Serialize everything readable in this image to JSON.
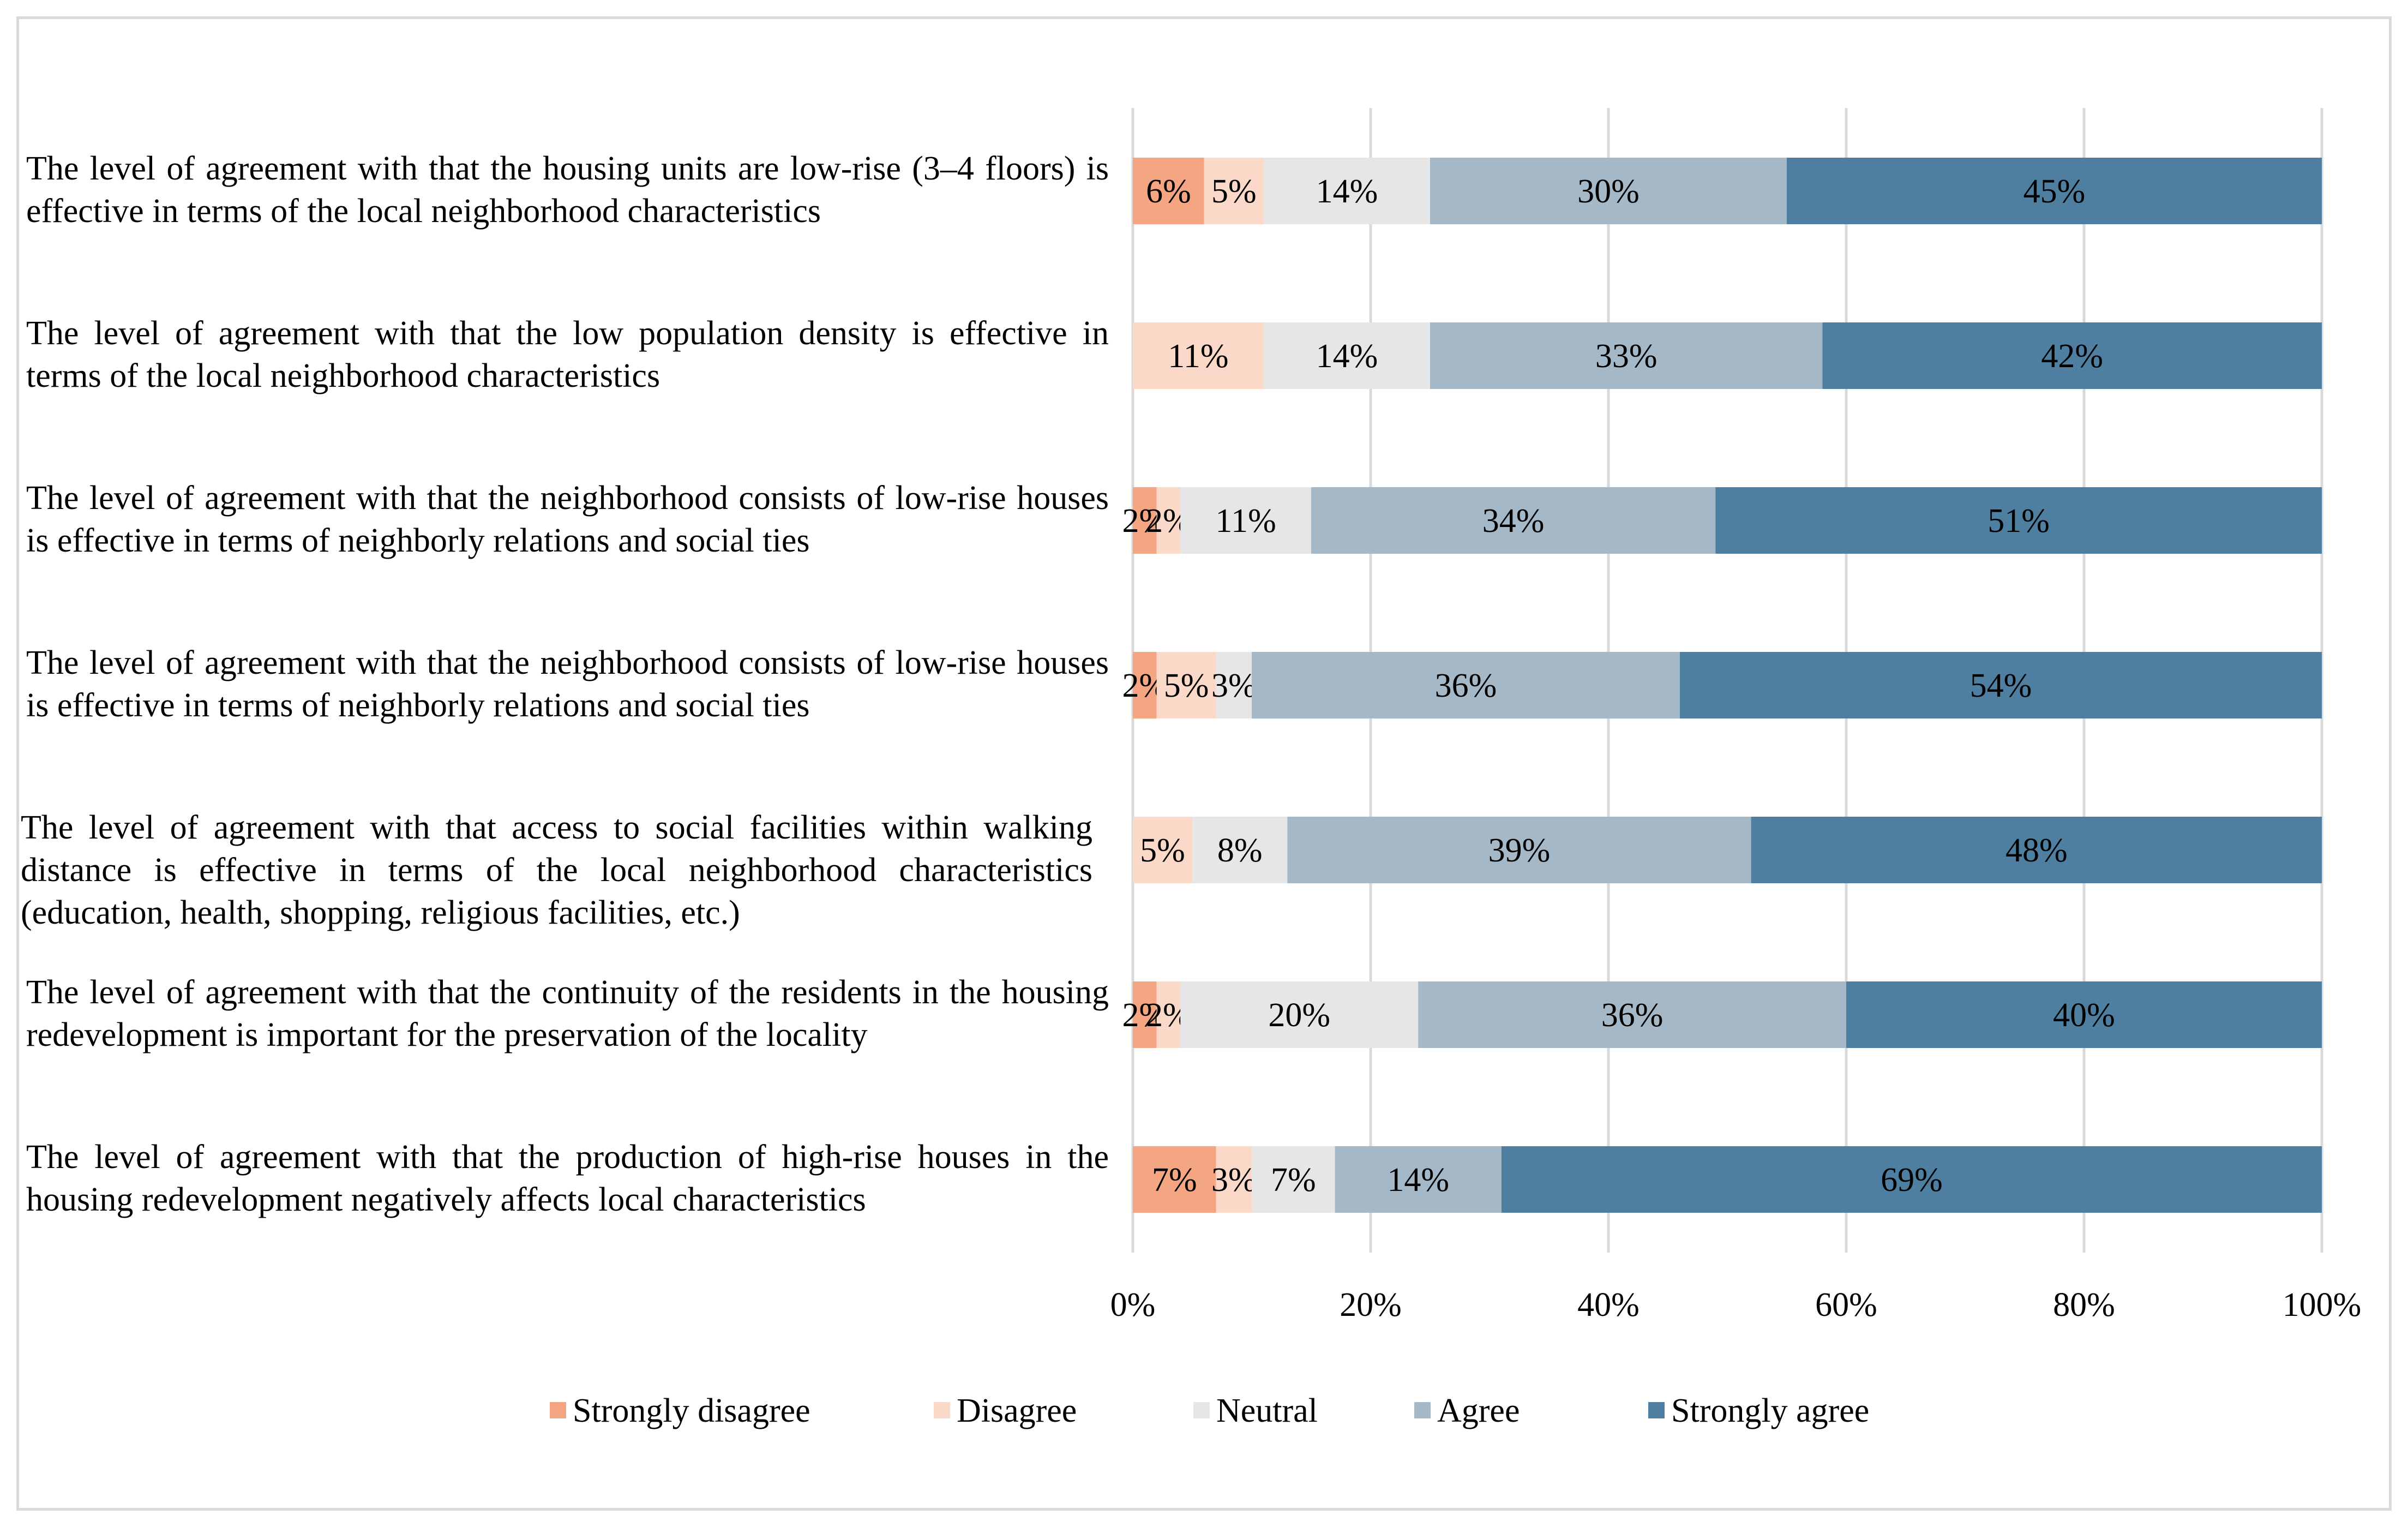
{
  "chart_data": {
    "type": "bar",
    "orientation": "horizontal",
    "stacked": "percent",
    "title": "",
    "xlabel": "",
    "ylabel": "",
    "xlim": [
      0,
      100
    ],
    "x_ticks": [
      "0%",
      "20%",
      "40%",
      "60%",
      "80%",
      "100%"
    ],
    "grid": "vertical",
    "legend_position": "bottom",
    "categories": [
      "The level of agreement with that the housing units are low-rise (3–4 floors) is effective in terms of the local neighborhood characteristics",
      "The level of agreement with that the low population density is effective in terms of the local neighborhood characteristics",
      "The level of agreement with that the neighborhood consists of low-rise houses is effective in terms of neighborly relations and social ties",
      "The level of agreement with that the neighborhood consists of low-rise houses is effective in terms of neighborly relations and social ties",
      "The level of agreement with that access to social facilities within walking distance is effective in terms of the local neighborhood characteristics (education, health, shopping, religious facilities, etc.)",
      "The level of agreement with that the continuity of the residents in the housing redevelopment is important for the preservation of the locality",
      "The level of agreement with that the production of high-rise houses in the housing redevelopment negatively affects local characteristics"
    ],
    "series": [
      {
        "name": "Strongly disagree",
        "color": "#f4a582",
        "values": [
          6,
          0,
          2,
          2,
          0,
          2,
          7
        ],
        "labels": [
          "6%",
          "",
          "2%",
          "2%",
          "",
          "2%",
          "7%"
        ]
      },
      {
        "name": "Disagree",
        "color": "#fbd9c9",
        "values": [
          5,
          11,
          2,
          5,
          5,
          2,
          3
        ],
        "labels": [
          "5%",
          "11%",
          "2%",
          "5%",
          "5%",
          "2%",
          "3%"
        ]
      },
      {
        "name": "Neutral",
        "color": "#e6e6e6",
        "values": [
          14,
          14,
          11,
          3,
          8,
          20,
          7
        ],
        "labels": [
          "14%",
          "14%",
          "11%",
          "3%",
          "8%",
          "20%",
          "7%"
        ]
      },
      {
        "name": "Agree",
        "color": "#a4b8c8",
        "values": [
          30,
          33,
          34,
          36,
          39,
          36,
          14
        ],
        "labels": [
          "30%",
          "33%",
          "34%",
          "36%",
          "39%",
          "36%",
          "14%"
        ]
      },
      {
        "name": "Strongly agree",
        "color": "#4e7fa1",
        "values": [
          45,
          42,
          51,
          54,
          48,
          40,
          69
        ],
        "labels": [
          "45%",
          "42%",
          "51%",
          "54%",
          "48%",
          "40%",
          "69%"
        ]
      }
    ]
  }
}
